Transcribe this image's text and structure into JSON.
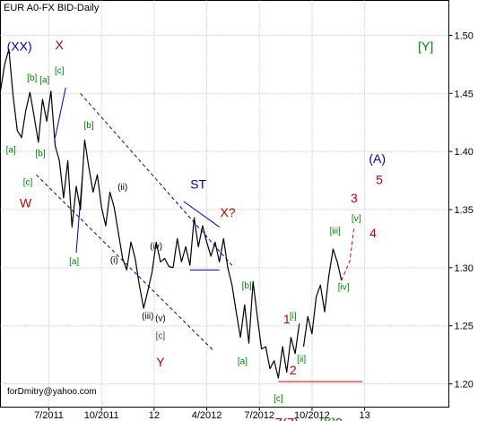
{
  "chart_data": {
    "type": "line",
    "title": "EUR A0-FX BID-Daily",
    "credit": "forDmitry@yahoo.com",
    "yaxis": {
      "position": "right",
      "ylim": [
        1.18,
        1.53
      ],
      "ticks": [
        1.5,
        1.45,
        1.4,
        1.35,
        1.3,
        1.25,
        1.2
      ],
      "tick_labels": [
        "1.50",
        "1.45",
        "1.40",
        "1.35",
        "1.30",
        "1.25",
        "1.20"
      ]
    },
    "xaxis": {
      "xlim": [
        2011.27,
        2013.4
      ],
      "ticks": [
        2011.5,
        2011.75,
        2012.0,
        2012.25,
        2012.5,
        2012.75,
        2013.0
      ],
      "tick_labels": [
        "7/2011",
        "10/2011",
        "12",
        "4/2012",
        "7/2012",
        "10/2012",
        "13"
      ]
    },
    "grid": true,
    "series": [
      {
        "x": [
          2011.27,
          2011.29,
          2011.31,
          2011.33,
          2011.35,
          2011.37,
          2011.39,
          2011.41,
          2011.43,
          2011.45,
          2011.47,
          2011.49,
          2011.51,
          2011.53,
          2011.55,
          2011.57,
          2011.59,
          2011.61,
          2011.63,
          2011.65,
          2011.67,
          2011.69,
          2011.71,
          2011.73,
          2011.75,
          2011.77,
          2011.79,
          2011.81,
          2011.83,
          2011.85,
          2011.87,
          2011.89,
          2011.91,
          2011.93,
          2011.95,
          2011.97,
          2011.99,
          2012.01,
          2012.03,
          2012.05,
          2012.07,
          2012.09,
          2012.11,
          2012.13,
          2012.15,
          2012.17,
          2012.19,
          2012.21,
          2012.23,
          2012.25,
          2012.27,
          2012.29,
          2012.31,
          2012.33,
          2012.35,
          2012.37,
          2012.39,
          2012.41,
          2012.43,
          2012.45,
          2012.47,
          2012.49,
          2012.51,
          2012.53,
          2012.55,
          2012.57,
          2012.59,
          2012.61,
          2012.63,
          2012.65,
          2012.67,
          2012.69
        ],
        "values": [
          1.452,
          1.475,
          1.488,
          1.448,
          1.418,
          1.412,
          1.435,
          1.451,
          1.43,
          1.408,
          1.445,
          1.426,
          1.452,
          1.405,
          1.392,
          1.36,
          1.392,
          1.335,
          1.37,
          1.35,
          1.41,
          1.386,
          1.365,
          1.38,
          1.352,
          1.336,
          1.365,
          1.352,
          1.33,
          1.308,
          1.298,
          1.322,
          1.308,
          1.285,
          1.265,
          1.28,
          1.296,
          1.322,
          1.305,
          1.308,
          1.301,
          1.3,
          1.325,
          1.305,
          1.318,
          1.302,
          1.343,
          1.318,
          1.336,
          1.322,
          1.31,
          1.322,
          1.305,
          1.325,
          1.3,
          1.285,
          1.262,
          1.24,
          1.268,
          1.235,
          1.288,
          1.258,
          1.23,
          1.232,
          1.213,
          1.22,
          1.205,
          1.232,
          1.21,
          1.24,
          1.226,
          1.252
        ]
      },
      {
        "x": [
          2012.71,
          2012.73,
          2012.75,
          2012.77,
          2012.79,
          2012.81,
          2012.83,
          2012.85,
          2012.87,
          2012.89
        ],
        "values": [
          1.232,
          1.258,
          1.243,
          1.275,
          1.285,
          1.262,
          1.293,
          1.316,
          1.305,
          1.289
        ]
      }
    ],
    "annotations": [
      {
        "text": "(XX)",
        "x": 2011.36,
        "y": 1.487,
        "color": "#0000b4",
        "size": 14
      },
      {
        "text": "X",
        "x": 2011.55,
        "y": 1.488,
        "color": "#b40000",
        "size": 14
      },
      {
        "text": "[Y]",
        "x": 2013.29,
        "y": 1.487,
        "color": "#008000",
        "size": 14
      },
      {
        "text": "[b]",
        "x": 2011.42,
        "y": 1.461,
        "color": "#008000",
        "size": 10
      },
      {
        "text": "[a]",
        "x": 2011.48,
        "y": 1.459,
        "color": "#008000",
        "size": 10
      },
      {
        "text": "[c]",
        "x": 2011.55,
        "y": 1.467,
        "color": "#008000",
        "size": 10
      },
      {
        "text": "[b]",
        "x": 2011.69,
        "y": 1.42,
        "color": "#008000",
        "size": 10
      },
      {
        "text": "[a]",
        "x": 2011.32,
        "y": 1.399,
        "color": "#008000",
        "size": 10
      },
      {
        "text": "[b]",
        "x": 2011.46,
        "y": 1.396,
        "color": "#008000",
        "size": 10
      },
      {
        "text": "[c]",
        "x": 2011.4,
        "y": 1.371,
        "color": "#008000",
        "size": 10
      },
      {
        "text": "W",
        "x": 2011.39,
        "y": 1.352,
        "color": "#b40000",
        "size": 14
      },
      {
        "text": "(ii)",
        "x": 2011.85,
        "y": 1.367,
        "color": "#000000",
        "size": 10
      },
      {
        "text": "[a]",
        "x": 2011.62,
        "y": 1.303,
        "color": "#008000",
        "size": 10
      },
      {
        "text": "(i)",
        "x": 2011.81,
        "y": 1.304,
        "color": "#000000",
        "size": 10
      },
      {
        "text": "(iv)",
        "x": 2012.01,
        "y": 1.316,
        "color": "#000000",
        "size": 10
      },
      {
        "text": "(iii)",
        "x": 2011.97,
        "y": 1.256,
        "color": "#000000",
        "size": 10
      },
      {
        "text": "(v)",
        "x": 2012.03,
        "y": 1.254,
        "color": "#000000",
        "size": 10
      },
      {
        "text": "[c]",
        "x": 2012.03,
        "y": 1.239,
        "color": "#008000",
        "size": 10
      },
      {
        "text": "Y",
        "x": 2012.03,
        "y": 1.215,
        "color": "#b40000",
        "size": 14
      },
      {
        "text": "ST",
        "x": 2012.21,
        "y": 1.368,
        "color": "#0000b4",
        "size": 14
      },
      {
        "text": "X?",
        "x": 2012.35,
        "y": 1.344,
        "color": "#b40000",
        "size": 14
      },
      {
        "text": "[b]",
        "x": 2012.44,
        "y": 1.282,
        "color": "#008000",
        "size": 10
      },
      {
        "text": "[a]",
        "x": 2012.42,
        "y": 1.217,
        "color": "#008000",
        "size": 10
      },
      {
        "text": "1",
        "x": 2012.63,
        "y": 1.252,
        "color": "#b40000",
        "size": 14
      },
      {
        "text": "[i]",
        "x": 2012.66,
        "y": 1.256,
        "color": "#008000",
        "size": 10
      },
      {
        "text": "2",
        "x": 2012.66,
        "y": 1.208,
        "color": "#b40000",
        "size": 14
      },
      {
        "text": "[ii]",
        "x": 2012.7,
        "y": 1.219,
        "color": "#008000",
        "size": 10
      },
      {
        "text": "[c]",
        "x": 2012.59,
        "y": 1.185,
        "color": "#008000",
        "size": 10
      },
      {
        "text": "[iii]",
        "x": 2012.86,
        "y": 1.329,
        "color": "#008000",
        "size": 10
      },
      {
        "text": "[iv]",
        "x": 2012.9,
        "y": 1.281,
        "color": "#008000",
        "size": 10
      },
      {
        "text": "[v]",
        "x": 2012.96,
        "y": 1.34,
        "color": "#008000",
        "size": 10
      },
      {
        "text": "3",
        "x": 2012.95,
        "y": 1.356,
        "color": "#b40000",
        "size": 14
      },
      {
        "text": "4",
        "x": 2013.04,
        "y": 1.326,
        "color": "#b40000",
        "size": 14
      },
      {
        "text": "5",
        "x": 2013.07,
        "y": 1.372,
        "color": "#b40000",
        "size": 14
      },
      {
        "text": "(A)",
        "x": 2013.06,
        "y": 1.39,
        "color": "#0000b4",
        "size": 14
      },
      {
        "text": "Z(Z)",
        "x": 2012.63,
        "y": 1.163,
        "color": "#b40000",
        "size": 14
      },
      {
        "text": "[X]?",
        "x": 2012.84,
        "y": 1.163,
        "color": "#008000",
        "size": 14
      }
    ],
    "lines": [
      {
        "x": [
          2011.65,
          2012.37
        ],
        "y": [
          1.45,
          1.302
        ],
        "color": "#0000b4",
        "dash": true
      },
      {
        "x": [
          2011.44,
          2012.28
        ],
        "y": [
          1.38,
          1.229
        ],
        "color": "#0000b4",
        "dash": true
      },
      {
        "x": [
          2011.53,
          2011.58
        ],
        "y": [
          1.412,
          1.455
        ],
        "color": "#0000b4",
        "dash": false
      },
      {
        "x": [
          2011.63,
          2011.66
        ],
        "y": [
          1.313,
          1.381
        ],
        "color": "#0000b4",
        "dash": false
      },
      {
        "x": [
          2012.14,
          2012.31
        ],
        "y": [
          1.357,
          1.335
        ],
        "color": "#0000b4",
        "dash": false
      },
      {
        "x": [
          2012.17,
          2012.31
        ],
        "y": [
          1.298,
          1.298
        ],
        "color": "#0000b4",
        "dash": false
      },
      {
        "x": [
          2012.59,
          2012.99
        ],
        "y": [
          1.202,
          1.202
        ],
        "color": "#e00000",
        "dash": false
      },
      {
        "x": [
          2012.89,
          2012.93,
          2012.95
        ],
        "y": [
          1.289,
          1.306,
          1.336
        ],
        "color": "#e00000",
        "dash": true
      }
    ]
  }
}
